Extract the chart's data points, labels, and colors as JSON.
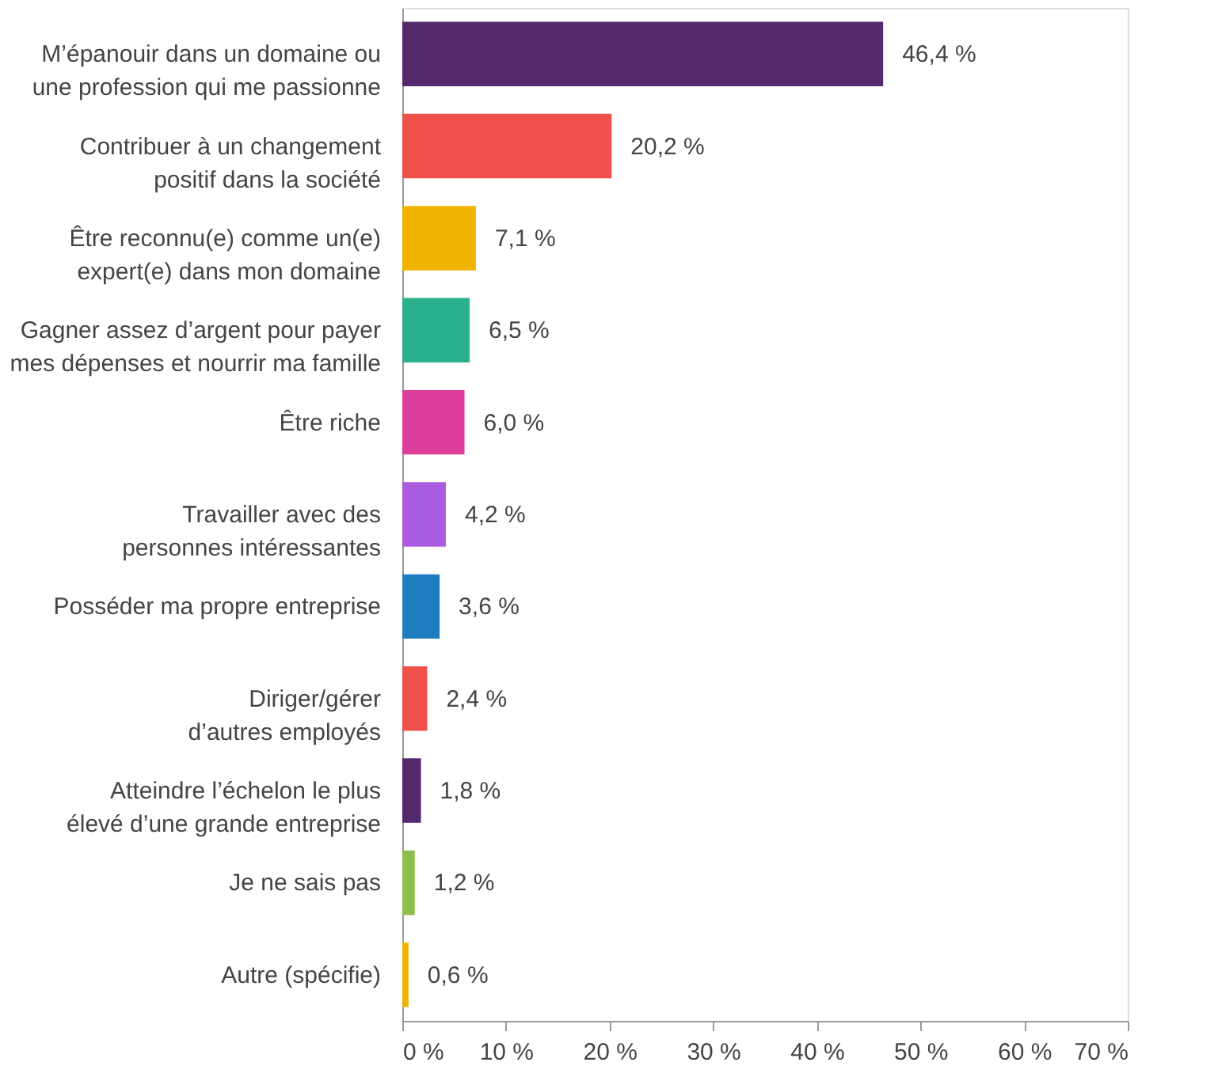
{
  "chart_data": {
    "type": "bar",
    "orientation": "horizontal",
    "categories": [
      "M’épanouir dans un domaine ou une profession qui me passionne",
      "Contribuer à un changement positif dans la société",
      "Être reconnu(e) comme un(e) expert(e) dans mon domaine",
      "Gagner assez d’argent pour payer mes dépenses et nourrir ma famille",
      "Être riche",
      "Travailler avec des personnes intéressantes",
      "Posséder ma propre entreprise",
      "Diriger/gérer d’autres employés",
      "Atteindre l’échelon le plus élevé d’une grande entreprise",
      "Je ne sais pas",
      "Autre (spécifie)"
    ],
    "values": [
      46.4,
      20.2,
      7.1,
      6.5,
      6.0,
      4.2,
      3.6,
      2.4,
      1.8,
      1.2,
      0.6
    ],
    "colors": [
      "#54296e",
      "#f0504a",
      "#f0b400",
      "#2bb08e",
      "#de3c9c",
      "#a95ce0",
      "#1f7dbf",
      "#f0504a",
      "#54296e",
      "#8cc04a",
      "#f0b400"
    ],
    "value_labels": [
      "46,4 %",
      "20,2 %",
      "7,1 %",
      "6,5 %",
      "6,0 %",
      "4,2 %",
      "3,6 %",
      "2,4 %",
      "1,8 %",
      "1,2 %",
      "0,6 %"
    ],
    "xlim": [
      0,
      70
    ],
    "xticks": [
      {
        "value": 0,
        "label": "0 %"
      },
      {
        "value": 10,
        "label": "10 %"
      },
      {
        "value": 20,
        "label": "20 %"
      },
      {
        "value": 30,
        "label": "30 %"
      },
      {
        "value": 40,
        "label": "40 %"
      },
      {
        "value": 50,
        "label": "50 %"
      },
      {
        "value": 60,
        "label": "60 %"
      },
      {
        "value": 70,
        "label": "70 %"
      }
    ],
    "grid": false
  }
}
